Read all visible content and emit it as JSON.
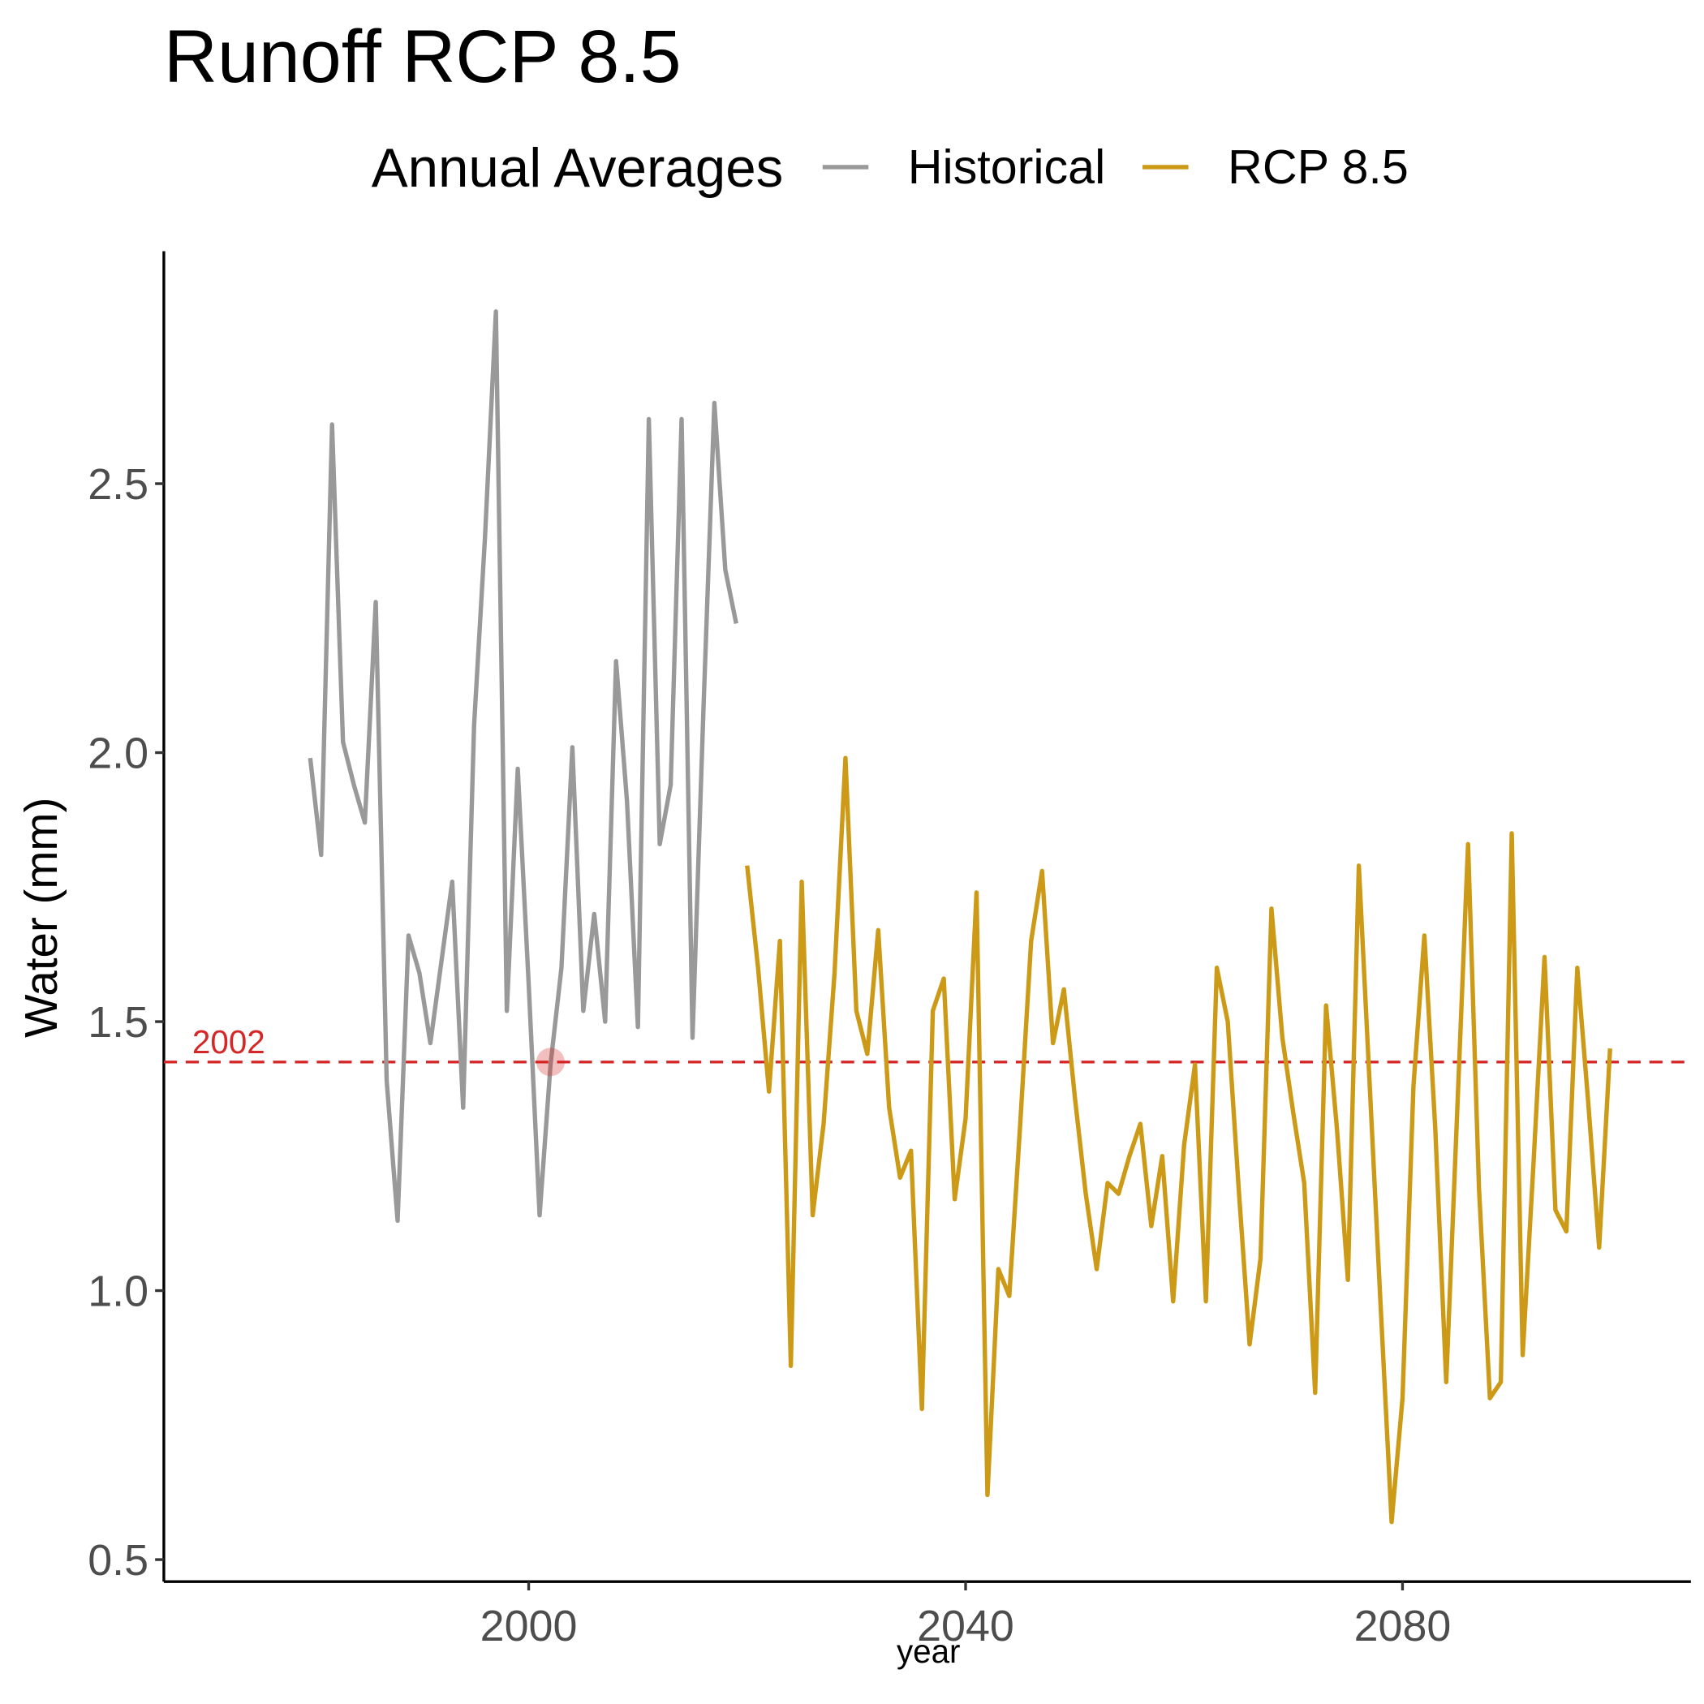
{
  "chart_data": {
    "type": "line",
    "title": "Runoff RCP 8.5",
    "x_label": "year",
    "y_label": "Water (mm)",
    "legend_title": "Annual Averages",
    "legend_position": "top",
    "xlim": [
      1966.6,
      2106.4
    ],
    "ylim": [
      0.459,
      2.932
    ],
    "xticks": [
      2000,
      2040,
      2080
    ],
    "yticks": [
      0.5,
      {
        "value": 1,
        "label": "1.0"
      },
      1.5,
      {
        "value": 2,
        "label": "2.0"
      },
      2.5
    ],
    "grid": false,
    "reference": {
      "value": 1.425,
      "label": "2002",
      "x": 2002,
      "color": "#d62728"
    },
    "series": [
      {
        "name": "Historical",
        "color": "#999999",
        "x": [
          1980,
          1981,
          1982,
          1983,
          1984,
          1985,
          1986,
          1987,
          1988,
          1989,
          1990,
          1991,
          1992,
          1993,
          1994,
          1995,
          1996,
          1997,
          1998,
          1999,
          2000,
          2001,
          2002,
          2003,
          2004,
          2005,
          2006,
          2007,
          2008,
          2009,
          2010,
          2011,
          2012,
          2013,
          2014,
          2015,
          2016,
          2017,
          2018,
          2019
        ],
        "values": [
          1.99,
          1.81,
          2.61,
          2.02,
          1.94,
          1.87,
          2.28,
          1.39,
          1.13,
          1.66,
          1.59,
          1.46,
          1.61,
          1.76,
          1.34,
          2.05,
          2.4,
          2.82,
          1.52,
          1.97,
          1.57,
          1.14,
          1.42,
          1.6,
          2.01,
          1.52,
          1.7,
          1.5,
          2.17,
          1.91,
          1.49,
          2.62,
          1.83,
          1.94,
          2.62,
          1.47,
          2.08,
          2.65,
          2.34,
          2.24
        ]
      },
      {
        "name": "RCP 8.5",
        "color": "#cc9a16",
        "x": [
          2020,
          2021,
          2022,
          2023,
          2024,
          2025,
          2026,
          2027,
          2028,
          2029,
          2030,
          2031,
          2032,
          2033,
          2034,
          2035,
          2036,
          2037,
          2038,
          2039,
          2040,
          2041,
          2042,
          2043,
          2044,
          2045,
          2046,
          2047,
          2048,
          2049,
          2050,
          2051,
          2052,
          2053,
          2054,
          2055,
          2056,
          2057,
          2058,
          2059,
          2060,
          2061,
          2062,
          2063,
          2064,
          2065,
          2066,
          2067,
          2068,
          2069,
          2070,
          2071,
          2072,
          2073,
          2074,
          2075,
          2076,
          2077,
          2078,
          2079,
          2080,
          2081,
          2082,
          2083,
          2084,
          2085,
          2086,
          2087,
          2088,
          2089,
          2090,
          2091,
          2092,
          2093,
          2094,
          2095,
          2096,
          2097,
          2098,
          2099
        ],
        "values": [
          1.79,
          1.6,
          1.37,
          1.65,
          0.86,
          1.76,
          1.14,
          1.31,
          1.59,
          1.99,
          1.52,
          1.44,
          1.67,
          1.34,
          1.21,
          1.26,
          0.78,
          1.52,
          1.58,
          1.17,
          1.32,
          1.74,
          0.62,
          1.04,
          0.99,
          1.31,
          1.65,
          1.78,
          1.46,
          1.56,
          1.36,
          1.18,
          1.04,
          1.2,
          1.18,
          1.25,
          1.31,
          1.12,
          1.25,
          0.98,
          1.27,
          1.42,
          0.98,
          1.6,
          1.5,
          1.19,
          0.9,
          1.06,
          1.71,
          1.47,
          1.33,
          1.2,
          0.81,
          1.53,
          1.3,
          1.02,
          1.79,
          1.38,
          0.97,
          0.57,
          0.8,
          1.38,
          1.66,
          1.3,
          0.83,
          1.33,
          1.83,
          1.19,
          0.8,
          0.83,
          1.85,
          0.88,
          1.24,
          1.62,
          1.15,
          1.11,
          1.6,
          1.35,
          1.08,
          1.45
        ]
      }
    ]
  }
}
